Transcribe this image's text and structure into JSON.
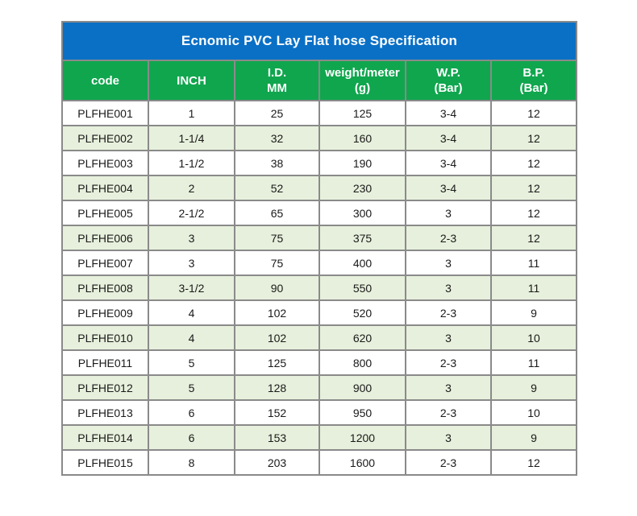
{
  "title": "Ecnomic PVC Lay Flat hose Specification",
  "columns": [
    {
      "line1": "code",
      "line2": ""
    },
    {
      "line1": "INCH",
      "line2": ""
    },
    {
      "line1": "I.D.",
      "line2": "MM"
    },
    {
      "line1": "weight/meter",
      "line2": "(g)"
    },
    {
      "line1": "W.P.",
      "line2": "(Bar)"
    },
    {
      "line1": "B.P.",
      "line2": "(Bar)"
    }
  ],
  "rows": [
    [
      "PLFHE001",
      "1",
      "25",
      "125",
      "3-4",
      "12"
    ],
    [
      "PLFHE002",
      "1-1/4",
      "32",
      "160",
      "3-4",
      "12"
    ],
    [
      "PLFHE003",
      "1-1/2",
      "38",
      "190",
      "3-4",
      "12"
    ],
    [
      "PLFHE004",
      "2",
      "52",
      "230",
      "3-4",
      "12"
    ],
    [
      "PLFHE005",
      "2-1/2",
      "65",
      "300",
      "3",
      "12"
    ],
    [
      "PLFHE006",
      "3",
      "75",
      "375",
      "2-3",
      "12"
    ],
    [
      "PLFHE007",
      "3",
      "75",
      "400",
      "3",
      "11"
    ],
    [
      "PLFHE008",
      "3-1/2",
      "90",
      "550",
      "3",
      "11"
    ],
    [
      "PLFHE009",
      "4",
      "102",
      "520",
      "2-3",
      "9"
    ],
    [
      "PLFHE010",
      "4",
      "102",
      "620",
      "3",
      "10"
    ],
    [
      "PLFHE011",
      "5",
      "125",
      "800",
      "2-3",
      "11"
    ],
    [
      "PLFHE012",
      "5",
      "128",
      "900",
      "3",
      "9"
    ],
    [
      "PLFHE013",
      "6",
      "152",
      "950",
      "2-3",
      "10"
    ],
    [
      "PLFHE014",
      "6",
      "153",
      "1200",
      "3",
      "9"
    ],
    [
      "PLFHE015",
      "8",
      "203",
      "1600",
      "2-3",
      "12"
    ]
  ],
  "colors": {
    "title_bg": "#0a70c6",
    "header_bg": "#10a64e",
    "row_alt_bg": "#e7f0dc",
    "border": "#8a8a8a"
  }
}
